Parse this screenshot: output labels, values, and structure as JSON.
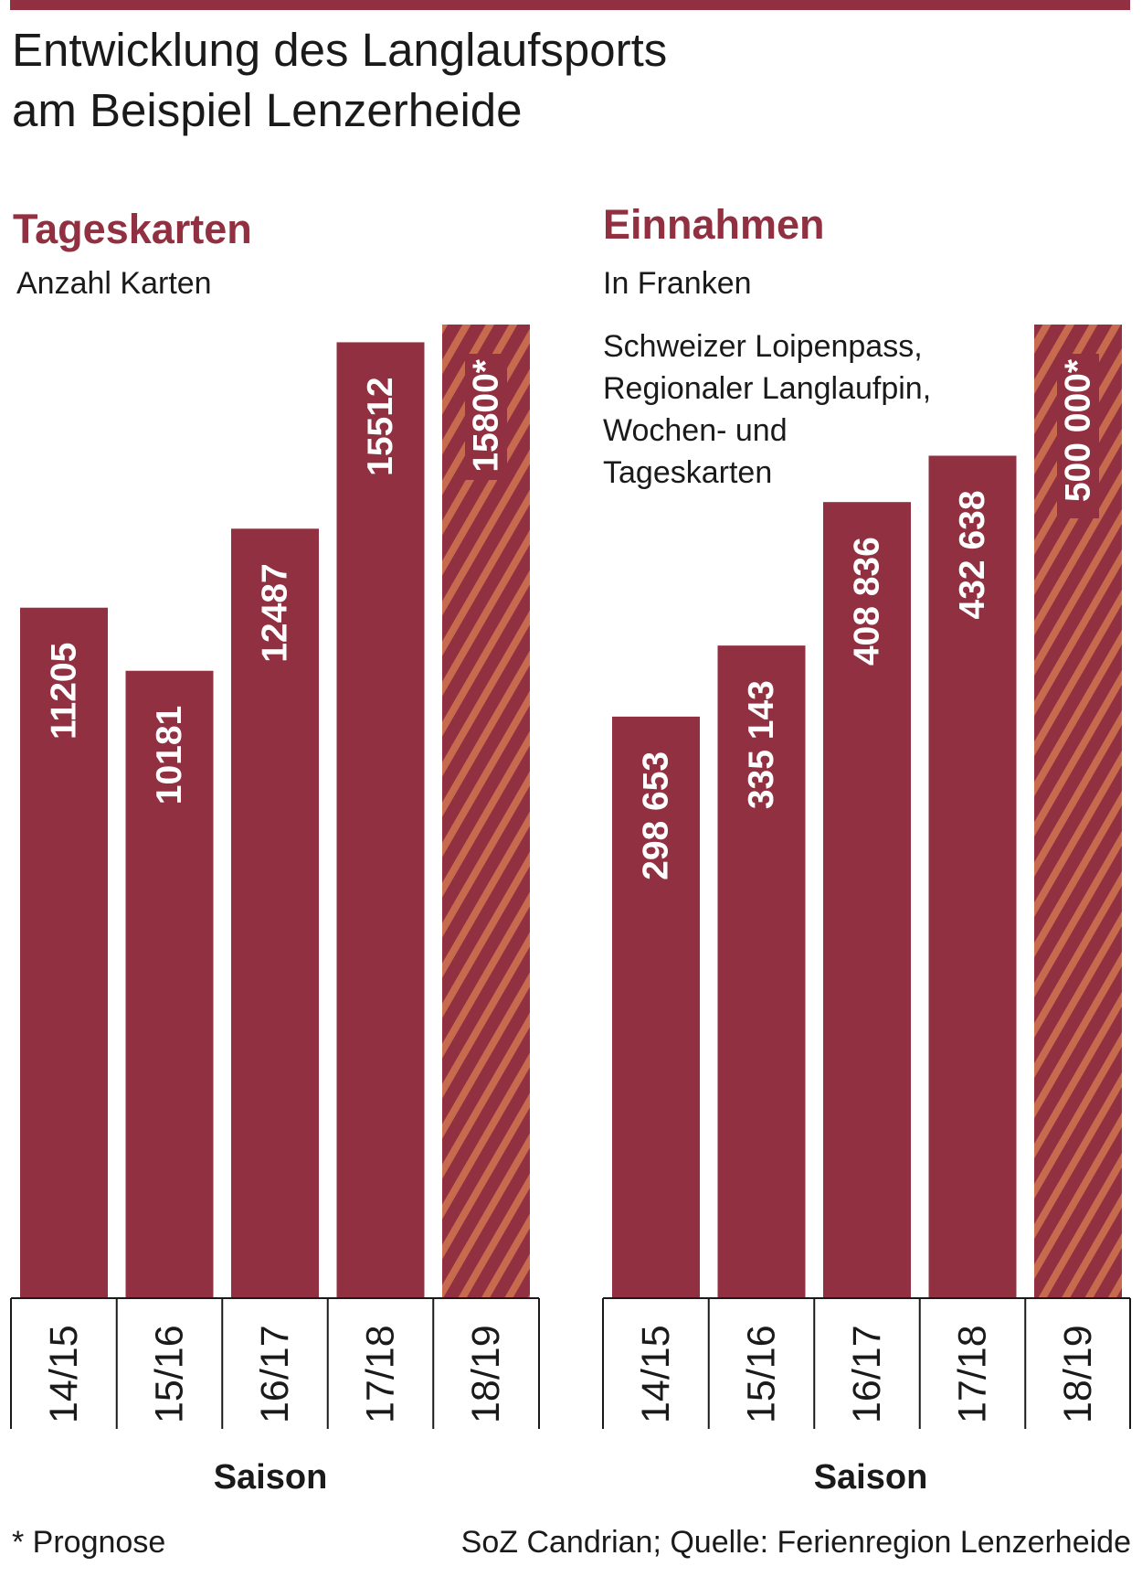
{
  "title": {
    "line1": "Entwicklung des Langlaufsports",
    "line2": "am Beispiel Lenzerheide"
  },
  "colors": {
    "bar": "#903040",
    "stripe": "#C86A4E",
    "background": "#ffffff"
  },
  "panels": [
    {
      "title": "Tageskarten",
      "subtitle": "Anzahl Karten",
      "axis_title": "Saison"
    },
    {
      "title": "Einnahmen",
      "subtitle": "In Franken",
      "note": [
        "Schweizer Loipenpass,",
        "Regionaler Langlaufpin,",
        "Wochen- und",
        "Tageskarten"
      ],
      "axis_title": "Saison"
    }
  ],
  "footer": {
    "left": "* Prognose",
    "right": "SoZ Candrian; Quelle: Ferienregion Lenzerheide"
  },
  "chart_data": [
    {
      "type": "bar",
      "title": "Tageskarten",
      "ylabel": "Anzahl Karten",
      "xlabel": "Saison",
      "categories": [
        "14/15",
        "15/16",
        "16/17",
        "17/18",
        "18/19"
      ],
      "values": [
        11205,
        10181,
        12487,
        15512,
        15800
      ],
      "labels": [
        "11205",
        "10181",
        "12487",
        "15512",
        "15800*"
      ],
      "forecast": [
        false,
        false,
        false,
        false,
        true
      ],
      "ylim": [
        0,
        15800
      ],
      "grid": false
    },
    {
      "type": "bar",
      "title": "Einnahmen",
      "ylabel": "In Franken",
      "xlabel": "Saison",
      "categories": [
        "14/15",
        "15/16",
        "16/17",
        "17/18",
        "18/19"
      ],
      "values": [
        298653,
        335143,
        408836,
        432638,
        500000
      ],
      "labels": [
        "298 653",
        "335 143",
        "408 836",
        "432 638",
        "500 000*"
      ],
      "forecast": [
        false,
        false,
        false,
        false,
        true
      ],
      "ylim": [
        0,
        500000
      ],
      "grid": false
    }
  ]
}
